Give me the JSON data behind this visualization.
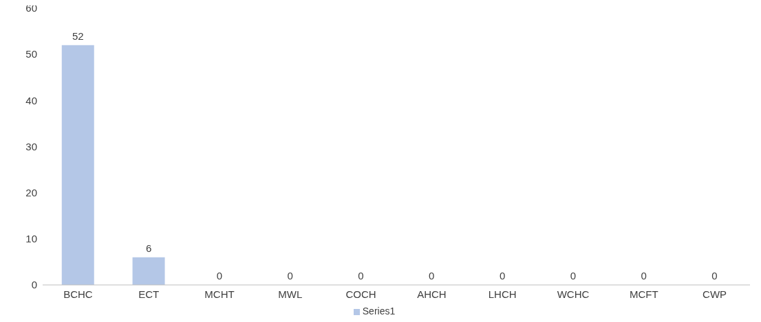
{
  "chart_data": {
    "type": "bar",
    "categories": [
      "BCHC",
      "ECT",
      "MCHT",
      "MWL",
      "COCH",
      "AHCH",
      "LHCH",
      "WCHC",
      "MCFT",
      "CWP"
    ],
    "series": [
      {
        "name": "Series1",
        "color": "#b4c7e7",
        "values": [
          52,
          6,
          0,
          0,
          0,
          0,
          0,
          0,
          0,
          0
        ]
      }
    ],
    "ylim": [
      0,
      60
    ],
    "yticks": [
      0,
      10,
      20,
      30,
      40,
      50,
      60
    ],
    "grid": false,
    "legend": "bottom",
    "data_labels": true
  }
}
